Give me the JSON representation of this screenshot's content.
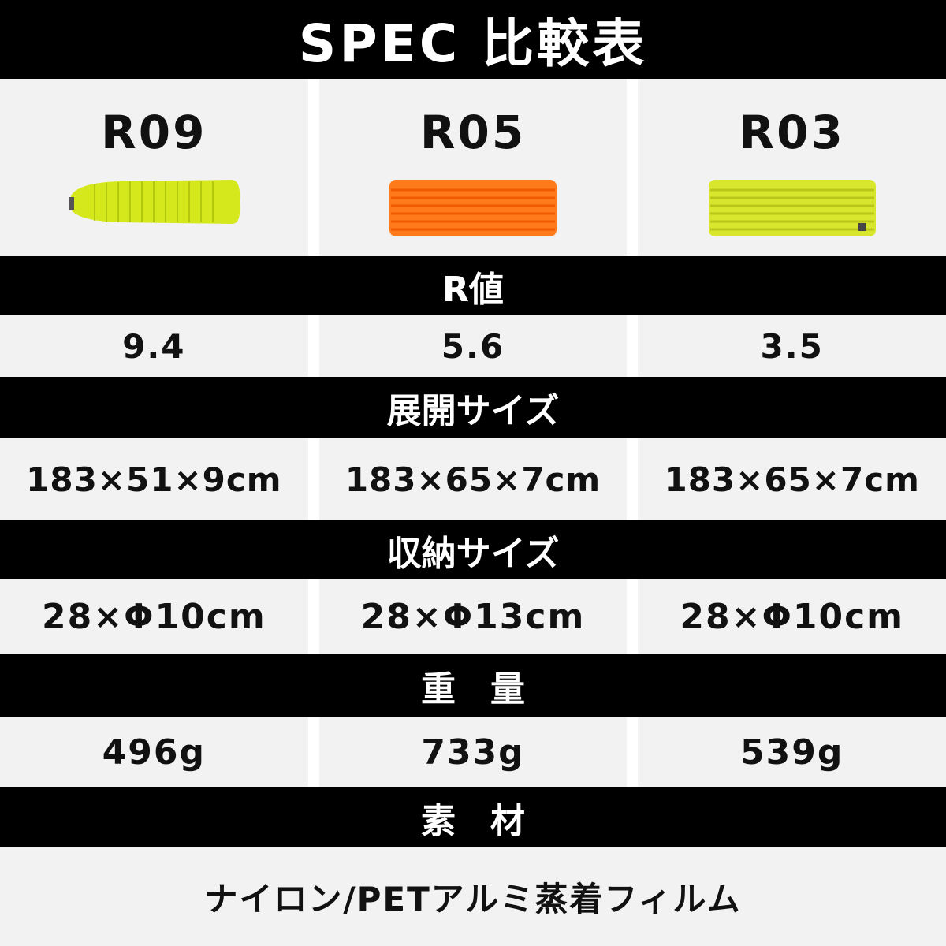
{
  "title": "SPEC 比較表",
  "models": [
    {
      "name": "R09",
      "mat_color": "#d4e81c",
      "mat_shape": "mummy"
    },
    {
      "name": "R05",
      "mat_color": "#ff7a1a",
      "mat_shape": "rectangle"
    },
    {
      "name": "R03",
      "mat_color": "#d9e62e",
      "mat_shape": "rectangle"
    }
  ],
  "sections": [
    {
      "label": "R値",
      "values": [
        "9.4",
        "5.6",
        "3.5"
      ]
    },
    {
      "label": "展開サイズ",
      "values": [
        "183×51×9cm",
        "183×65×7cm",
        "183×65×7cm"
      ]
    },
    {
      "label": "収納サイズ",
      "values": [
        "28×Φ10cm",
        "28×Φ13cm",
        "28×Φ10cm"
      ]
    },
    {
      "label": "重　量",
      "values": [
        "496g",
        "733g",
        "539g"
      ]
    },
    {
      "label": "素　材",
      "value": "ナイロン/PETアルミ蒸着フィルム"
    }
  ]
}
